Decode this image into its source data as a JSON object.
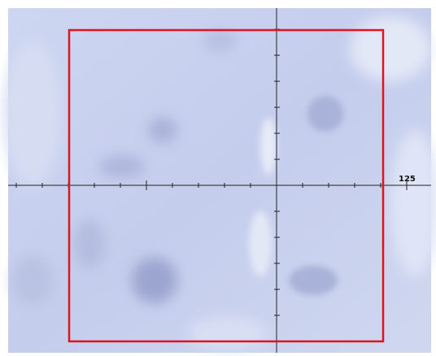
{
  "reticle": {
    "label": "125"
  }
}
